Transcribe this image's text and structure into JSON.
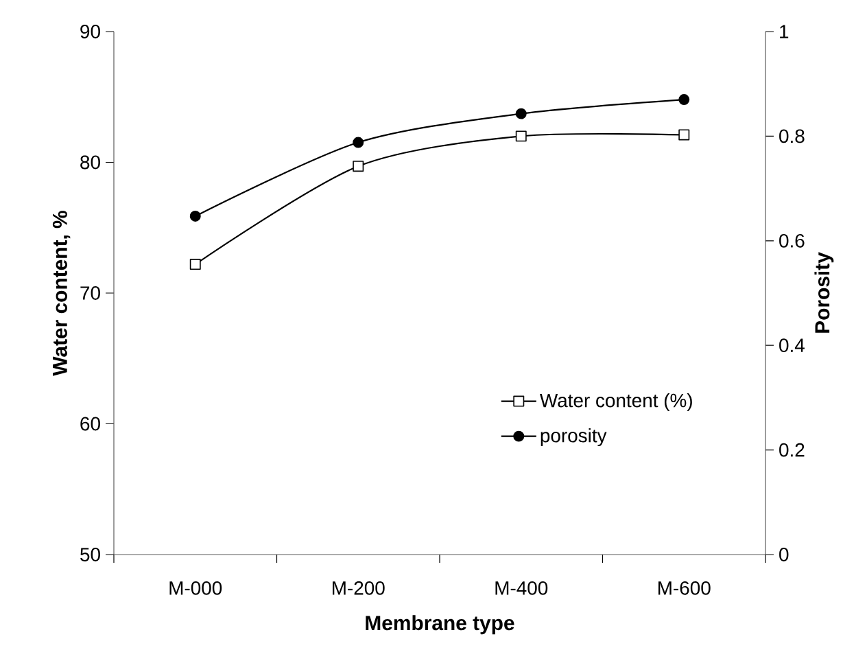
{
  "chart_data": {
    "type": "line",
    "xlabel": "Membrane type",
    "ylabel": "Water content, %",
    "y2label": "Porosity",
    "categories": [
      "M-000",
      "M-200",
      "M-400",
      "M-600"
    ],
    "series": [
      {
        "name": "Water content (%)",
        "color": "#000000",
        "marker": "square",
        "values": [
          72.2,
          79.7,
          82.0,
          82.1
        ]
      },
      {
        "name": "porosity",
        "color": "#000000",
        "marker": "circle",
        "axis": "y2",
        "values": [
          0.647,
          0.788,
          0.843,
          0.87
        ]
      }
    ],
    "ylim": [
      50,
      90
    ],
    "yticks": [
      50,
      60,
      70,
      80,
      90
    ],
    "y2lim": [
      0,
      1
    ],
    "y2ticks": [
      0,
      0.2,
      0.4,
      0.6,
      0.8,
      1
    ],
    "legend": "bottom right",
    "grid": false,
    "line_style": "solid"
  }
}
